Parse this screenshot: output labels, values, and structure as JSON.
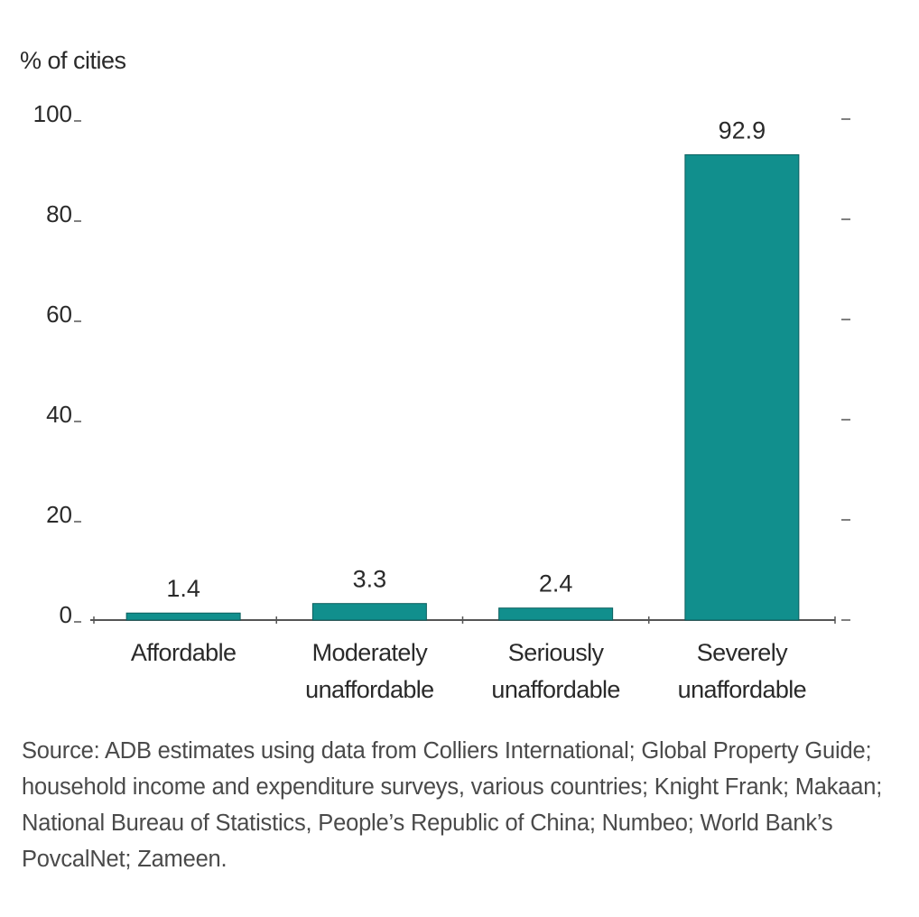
{
  "chart_data": {
    "type": "bar",
    "ylabel": "% of cities",
    "ylim": [
      0,
      100
    ],
    "yticks": [
      0,
      20,
      40,
      60,
      80,
      100
    ],
    "categories": [
      [
        "Affordable"
      ],
      [
        "Moderately",
        "unaffordable"
      ],
      [
        "Seriously",
        "unaffordable"
      ],
      [
        "Severely",
        "unaffordable"
      ]
    ],
    "values": [
      1.4,
      3.3,
      2.4,
      92.9
    ],
    "value_labels": [
      "1.4",
      "3.3",
      "2.4",
      "92.9"
    ],
    "bar_color": "#118f8d",
    "grid": false
  },
  "source": "Source: ADB estimates using data from Colliers International; Global Property Guide; household income and expenditure surveys, various countries; Knight Frank; Makaan; National Bureau of Statistics, People’s Republic of China; Numbeo; World Bank’s PovcalNet; Zameen."
}
